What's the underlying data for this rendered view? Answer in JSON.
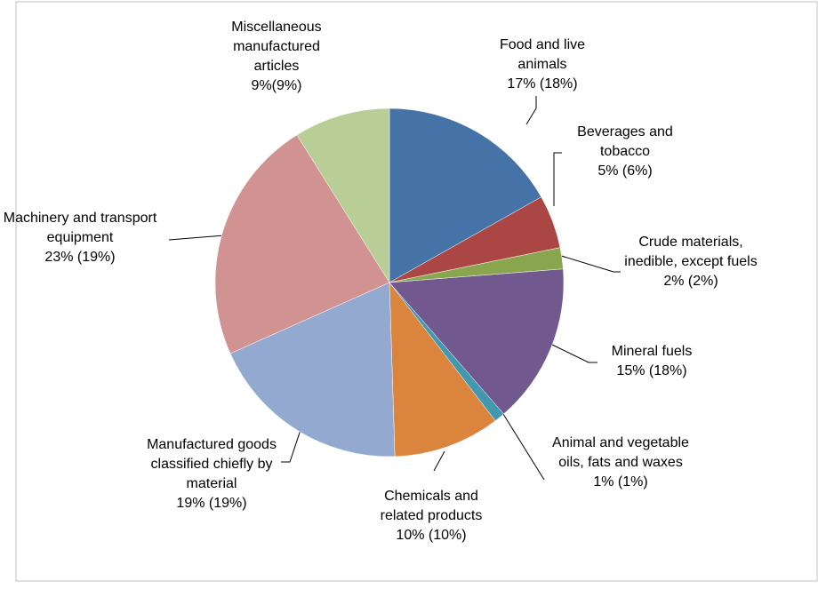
{
  "chart_data": {
    "type": "pie",
    "categories": [
      "Food and live animals",
      "Beverages and tobacco",
      "Crude materials, inedible, except fuels",
      "Mineral fuels",
      "Animal and vegetable oils, fats and waxes",
      "Chemicals and related products",
      "Manufactured goods classified chiefly by material",
      "Machinery and transport equipment",
      "Miscellaneous manufactured articles"
    ],
    "values": [
      17,
      5,
      2,
      15,
      1,
      10,
      19,
      23,
      9
    ],
    "value_labels": [
      "17% (18%)",
      "5% (6%)",
      "2% (2%)",
      "15% (18%)",
      "1% (1%)",
      "10% (10%)",
      "19% (19%)",
      "23% (19%)",
      "9%(9%)"
    ],
    "colors": [
      "#4572a7",
      "#aa4643",
      "#89a54e",
      "#71588f",
      "#4198af",
      "#db843d",
      "#93a9cf",
      "#d19392",
      "#b9cd96"
    ]
  }
}
